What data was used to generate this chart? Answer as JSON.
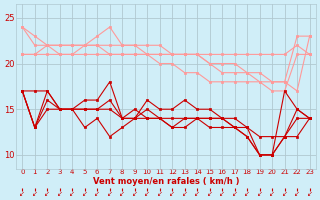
{
  "x": [
    0,
    1,
    2,
    3,
    4,
    5,
    6,
    7,
    8,
    9,
    10,
    11,
    12,
    13,
    14,
    15,
    16,
    17,
    18,
    19,
    20,
    21,
    22,
    23
  ],
  "light_line1": [
    21,
    21,
    21,
    21,
    21,
    21,
    21,
    21,
    21,
    21,
    21,
    21,
    21,
    21,
    21,
    21,
    21,
    21,
    21,
    21,
    21,
    21,
    22,
    21
  ],
  "light_line2": [
    24,
    23,
    22,
    21,
    21,
    22,
    23,
    24,
    22,
    22,
    22,
    22,
    21,
    21,
    21,
    20,
    20,
    20,
    19,
    19,
    18,
    18,
    23,
    23
  ],
  "light_line3": [
    24,
    22,
    22,
    22,
    22,
    22,
    22,
    22,
    22,
    22,
    21,
    21,
    21,
    21,
    21,
    20,
    19,
    19,
    19,
    18,
    18,
    18,
    17,
    23
  ],
  "light_line4": [
    21,
    21,
    22,
    22,
    22,
    22,
    22,
    21,
    21,
    21,
    21,
    20,
    20,
    19,
    19,
    18,
    18,
    18,
    18,
    18,
    17,
    17,
    21,
    21
  ],
  "dark_line1": [
    17,
    17,
    17,
    15,
    15,
    15,
    15,
    16,
    14,
    14,
    14,
    14,
    13,
    13,
    14,
    14,
    14,
    13,
    13,
    12,
    12,
    12,
    12,
    14
  ],
  "dark_line2": [
    17,
    13,
    17,
    15,
    15,
    16,
    16,
    18,
    14,
    14,
    16,
    15,
    15,
    16,
    15,
    15,
    14,
    14,
    13,
    10,
    10,
    17,
    15,
    14
  ],
  "dark_line3": [
    17,
    13,
    15,
    15,
    15,
    13,
    14,
    12,
    13,
    14,
    15,
    14,
    14,
    14,
    14,
    13,
    13,
    13,
    12,
    10,
    10,
    12,
    14,
    14
  ],
  "dark_line4": [
    17,
    13,
    16,
    15,
    15,
    15,
    15,
    15,
    14,
    15,
    14,
    14,
    13,
    14,
    14,
    14,
    14,
    13,
    12,
    10,
    10,
    12,
    15,
    14
  ],
  "bg_color": "#d0eef8",
  "grid_color": "#b0c8d0",
  "line_color_dark": "#cc0000",
  "line_color_light": "#ff9999",
  "xlabel": "Vent moyen/en rafales ( km/h )",
  "xlabel_color": "#cc0000",
  "tick_color": "#cc0000",
  "yticks": [
    10,
    15,
    20,
    25
  ],
  "xticks": [
    0,
    1,
    2,
    3,
    4,
    5,
    6,
    7,
    8,
    9,
    10,
    11,
    12,
    13,
    14,
    15,
    16,
    17,
    18,
    19,
    20,
    21,
    22,
    23
  ],
  "xlim": [
    -0.5,
    23.5
  ],
  "ylim": [
    8.5,
    26.5
  ]
}
